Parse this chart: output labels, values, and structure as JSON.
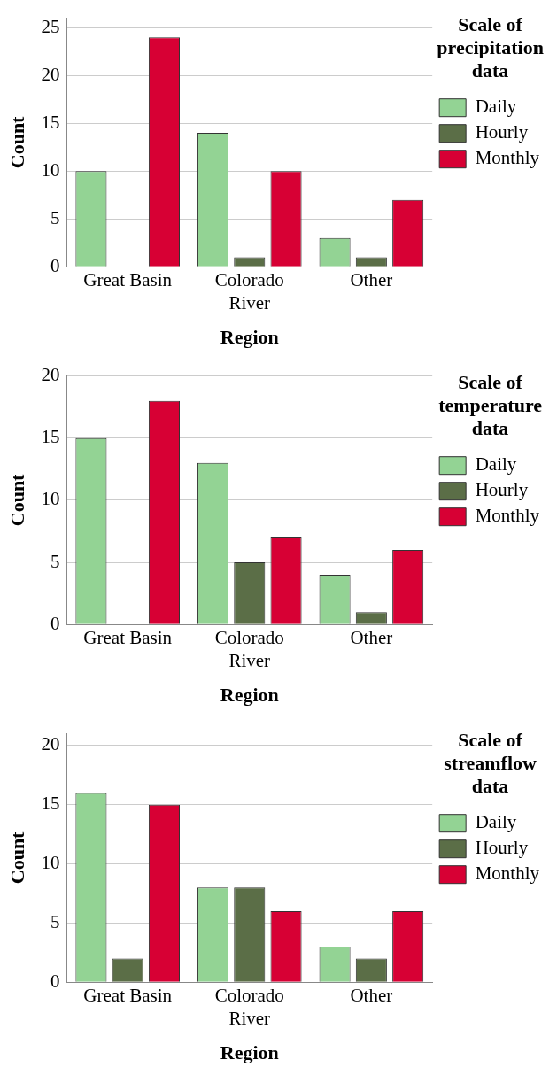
{
  "chart_data": [
    {
      "type": "bar",
      "xlabel": "Region",
      "ylabel": "Count",
      "legend_title": "Scale of precipitation data",
      "categories": [
        "Great Basin",
        "Colorado River",
        "Other"
      ],
      "series": [
        {
          "name": "Daily",
          "color": "#93d394",
          "values": [
            10,
            14,
            3
          ]
        },
        {
          "name": "Hourly",
          "color": "#5b6e47",
          "values": [
            0,
            1,
            1
          ]
        },
        {
          "name": "Monthly",
          "color": "#d70034",
          "values": [
            24,
            10,
            7
          ]
        }
      ],
      "ylim": [
        0,
        26
      ],
      "yticks": [
        0,
        5,
        10,
        15,
        20,
        25
      ],
      "grid": "y",
      "legend": "top right"
    },
    {
      "type": "bar",
      "xlabel": "Region",
      "ylabel": "Count",
      "legend_title": "Scale of temperature data",
      "categories": [
        "Great Basin",
        "Colorado River",
        "Other"
      ],
      "series": [
        {
          "name": "Daily",
          "color": "#93d394",
          "values": [
            15,
            13,
            4
          ]
        },
        {
          "name": "Hourly",
          "color": "#5b6e47",
          "values": [
            0,
            5,
            1
          ]
        },
        {
          "name": "Monthly",
          "color": "#d70034",
          "values": [
            18,
            7,
            6
          ]
        }
      ],
      "ylim": [
        0,
        20
      ],
      "yticks": [
        0,
        5,
        10,
        15,
        20
      ],
      "grid": "y",
      "legend": "top right"
    },
    {
      "type": "bar",
      "xlabel": "Region",
      "ylabel": "Count",
      "legend_title": "Scale of streamflow data",
      "categories": [
        "Great Basin",
        "Colorado River",
        "Other"
      ],
      "series": [
        {
          "name": "Daily",
          "color": "#93d394",
          "values": [
            16,
            8,
            3
          ]
        },
        {
          "name": "Hourly",
          "color": "#5b6e47",
          "values": [
            2,
            8,
            2
          ]
        },
        {
          "name": "Monthly",
          "color": "#d70034",
          "values": [
            15,
            6,
            6
          ]
        }
      ],
      "ylim": [
        0,
        21
      ],
      "yticks": [
        0,
        5,
        10,
        15,
        20
      ],
      "grid": "y",
      "legend": "top right"
    }
  ]
}
